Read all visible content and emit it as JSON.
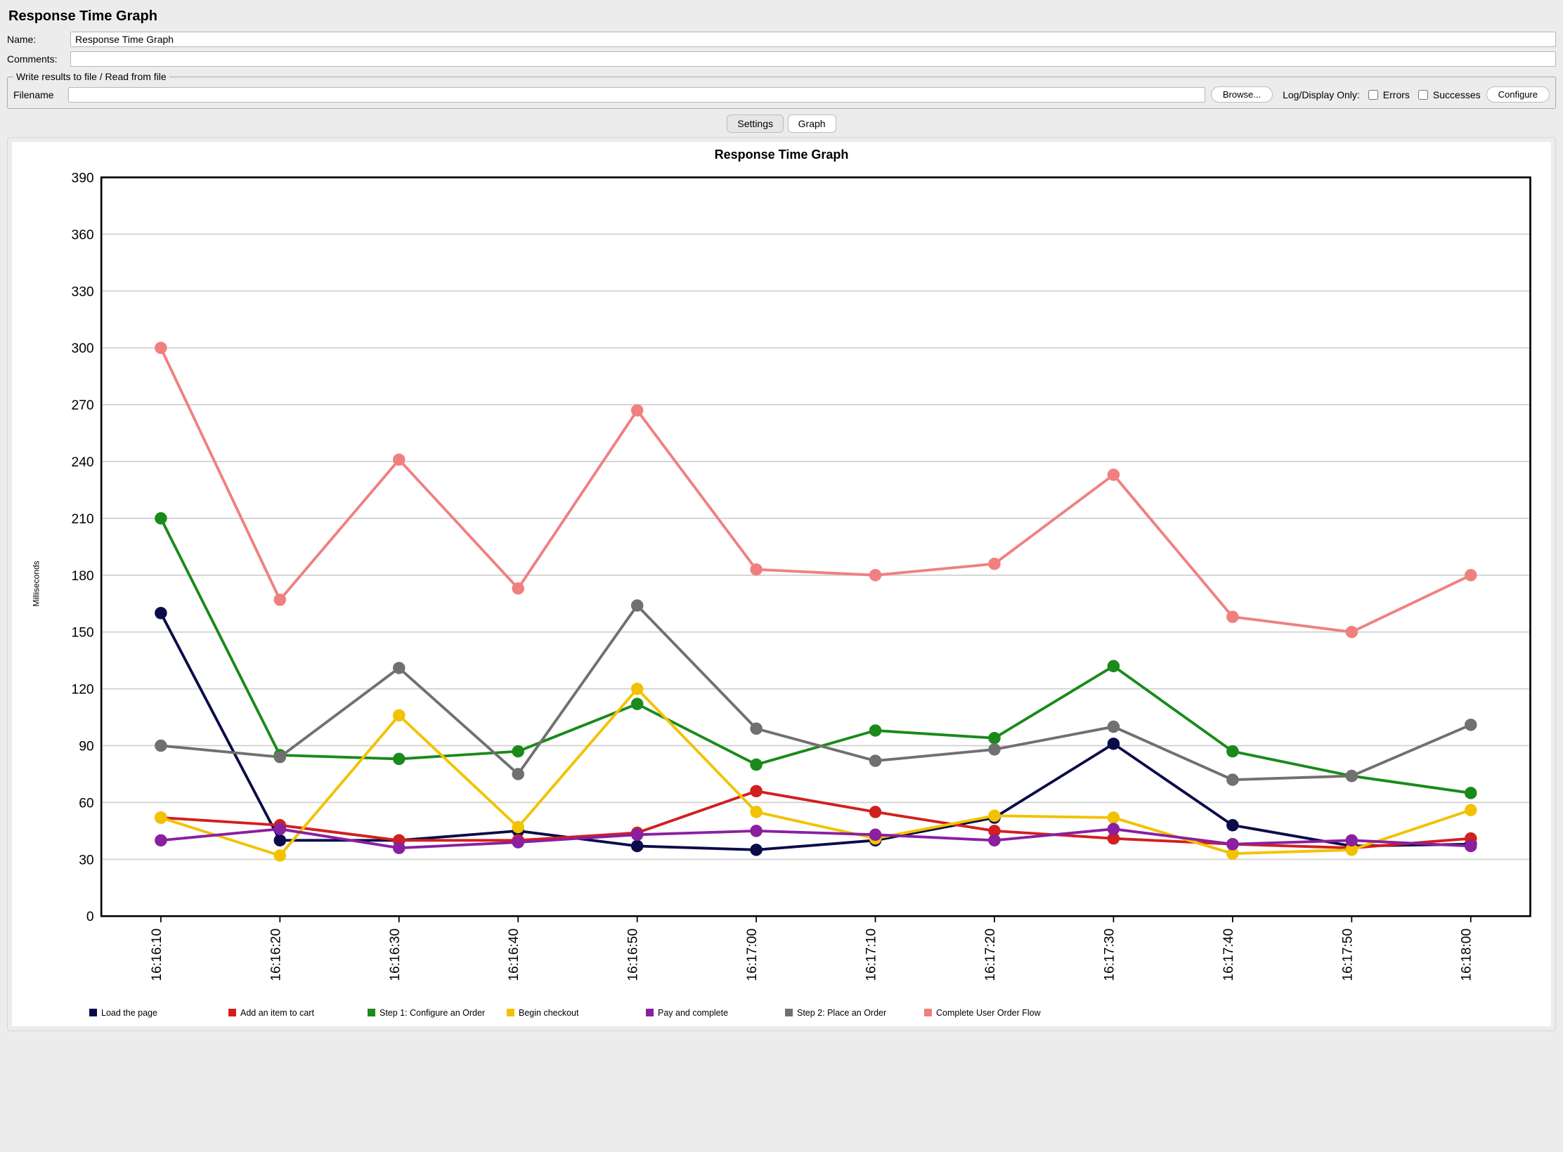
{
  "panel": {
    "title": "Response Time Graph",
    "name_label": "Name:",
    "name_value": "Response Time Graph",
    "comments_label": "Comments:",
    "comments_value": ""
  },
  "file_group": {
    "legend": "Write results to file / Read from file",
    "filename_label": "Filename",
    "filename_value": "",
    "browse_label": "Browse...",
    "logdisplay_label": "Log/Display Only:",
    "errors_label": "Errors",
    "successes_label": "Successes",
    "configure_label": "Configure"
  },
  "tabs": {
    "settings": "Settings",
    "graph": "Graph",
    "active": "graph"
  },
  "chart": {
    "type": "line",
    "title": "Response Time Graph",
    "ylabel": "Milliseconds",
    "background_color": "#ffffff",
    "grid_color": "#d0d0d0",
    "axis_color": "#000000",
    "marker_radius": 4.5,
    "line_width": 2.2,
    "ylim": [
      0,
      390
    ],
    "ytick_step": 30,
    "x_categories": [
      "16:16:10",
      "16:16:20",
      "16:16:30",
      "16:16:40",
      "16:16:50",
      "16:17:00",
      "16:17:10",
      "16:17:20",
      "16:17:30",
      "16:17:40",
      "16:17:50",
      "16:18:00"
    ],
    "series": [
      {
        "name": "Load the page",
        "color": "#0b0b4a",
        "values": [
          160,
          40,
          40,
          45,
          37,
          35,
          40,
          52,
          91,
          48,
          37,
          38
        ]
      },
      {
        "name": "Add an item to cart",
        "color": "#d21f1f",
        "values": [
          52,
          48,
          40,
          40,
          44,
          66,
          55,
          45,
          41,
          38,
          36,
          41
        ]
      },
      {
        "name": "Step 1: Configure an Order",
        "color": "#1a8a1a",
        "values": [
          210,
          85,
          83,
          87,
          112,
          80,
          98,
          94,
          132,
          87,
          74,
          65
        ]
      },
      {
        "name": "Begin checkout",
        "color": "#f2c200",
        "values": [
          52,
          32,
          106,
          47,
          120,
          55,
          41,
          53,
          52,
          33,
          35,
          56
        ]
      },
      {
        "name": "Pay and complete",
        "color": "#8a1fa0",
        "values": [
          40,
          46,
          36,
          39,
          43,
          45,
          43,
          40,
          46,
          38,
          40,
          37
        ]
      },
      {
        "name": "Step 2: Place an Order",
        "color": "#707070",
        "values": [
          90,
          84,
          131,
          75,
          164,
          99,
          82,
          88,
          100,
          72,
          74,
          101
        ]
      },
      {
        "name": "Complete User Order Flow",
        "color": "#f08080",
        "values": [
          300,
          167,
          241,
          173,
          267,
          183,
          180,
          186,
          233,
          158,
          150,
          180
        ]
      }
    ]
  }
}
